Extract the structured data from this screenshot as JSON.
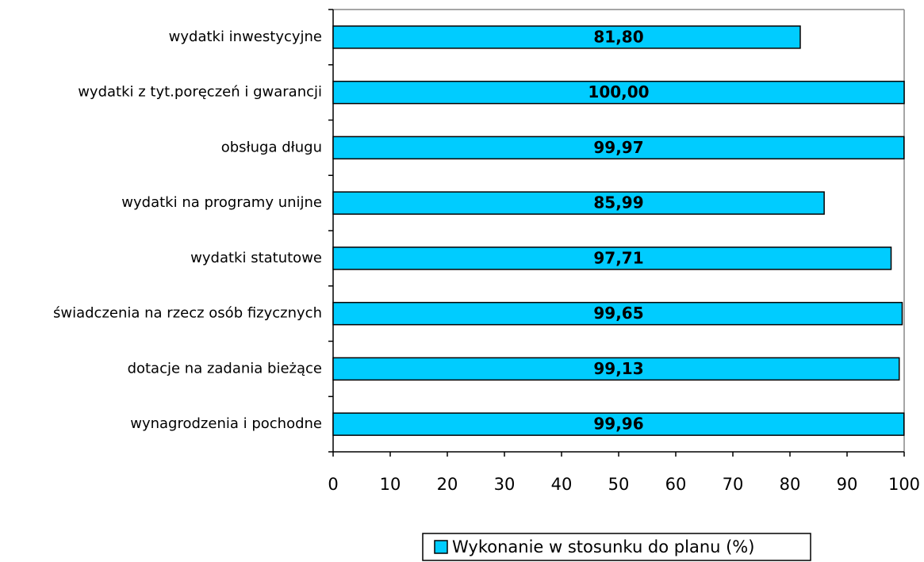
{
  "chart_data": {
    "type": "barh",
    "categories": [
      "wydatki inwestycyjne",
      "wydatki z tyt.poręczeń i gwarancji",
      "obsługa długu",
      "wydatki na programy unijne",
      "wydatki statutowe",
      "świadczenia na rzecz osób fizycznych",
      "dotacje na zadania bieżące",
      "wynagrodzenia i pochodne"
    ],
    "series": [
      {
        "name": "Wykonanie w stosunku do planu (%)",
        "color": "#00ccff",
        "values": [
          81.8,
          100.0,
          99.97,
          85.99,
          97.71,
          99.65,
          99.13,
          99.96
        ],
        "value_labels": [
          "81,80",
          "100,00",
          "99,97",
          "85,99",
          "97,71",
          "99,65",
          "99,13",
          "99,96"
        ]
      }
    ],
    "xlim": [
      0,
      100
    ],
    "xticks": [
      0,
      10,
      20,
      30,
      40,
      50,
      60,
      70,
      80,
      90,
      100
    ],
    "legend": "bottom"
  }
}
